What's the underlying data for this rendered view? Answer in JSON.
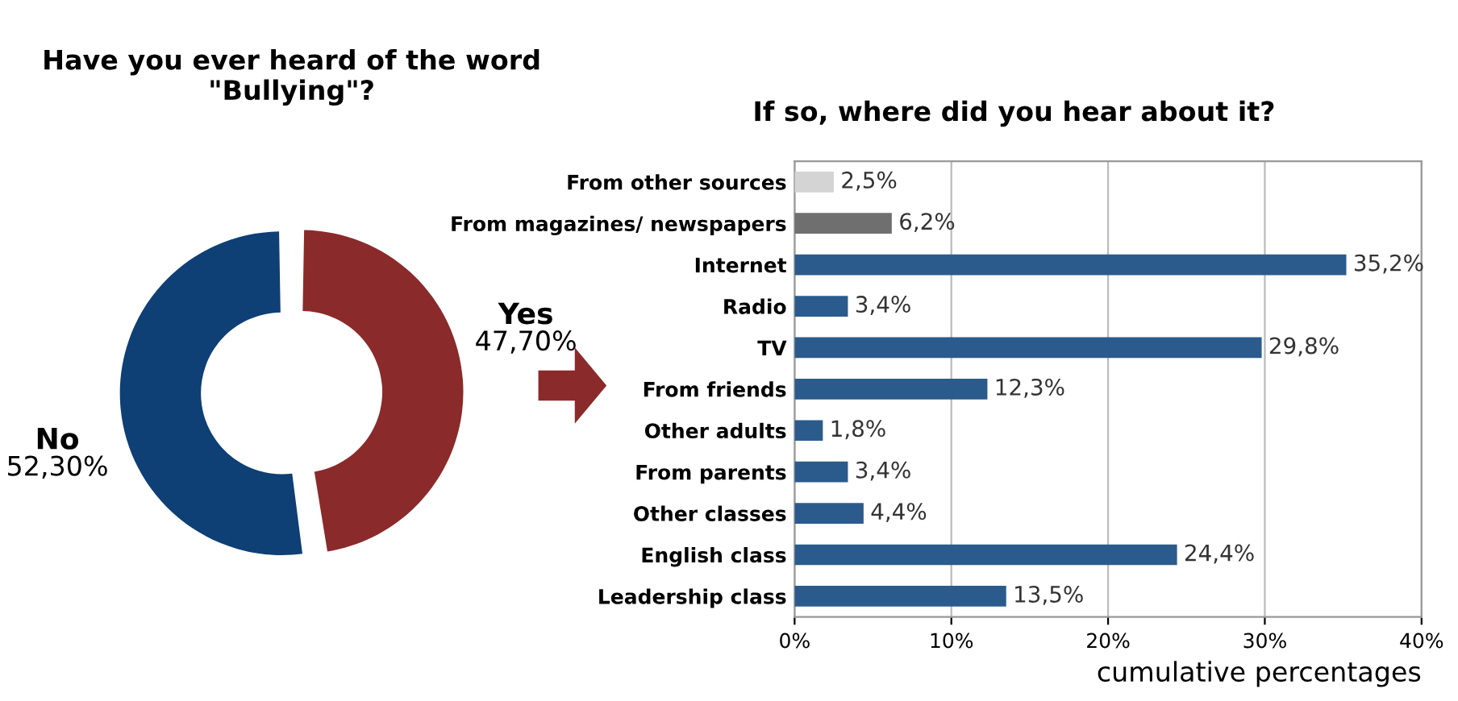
{
  "chart_data": [
    {
      "type": "donut",
      "title": "Have you ever heard of the word \"Bullying\"?",
      "categories": [
        "Yes",
        "No"
      ],
      "values": [
        47.7,
        52.3
      ],
      "colors": [
        "#8b2a2a",
        "#0e3f75"
      ],
      "value_labels": [
        "47,70%",
        "52,30%"
      ]
    },
    {
      "type": "bar",
      "orientation": "horizontal",
      "title": "If so, where did you hear about it?",
      "xlabel": "cumulative percentages",
      "categories": [
        "From other sources",
        "From magazines/ newspapers",
        "Internet",
        "Radio",
        "TV",
        "From friends",
        "Other adults",
        "From parents",
        "Other classes",
        "English class",
        "Leadership class"
      ],
      "values": [
        2.5,
        6.2,
        35.2,
        3.4,
        29.8,
        12.3,
        1.8,
        3.4,
        4.4,
        24.4,
        13.5
      ],
      "colors": [
        "#d4d4d4",
        "#6f6f6f",
        "#2b5b8c",
        "#2b5b8c",
        "#2b5b8c",
        "#2b5b8c",
        "#2b5b8c",
        "#2b5b8c",
        "#2b5b8c",
        "#2b5b8c",
        "#2b5b8c"
      ],
      "value_labels": [
        "2,5%",
        "6,2%",
        "35,2%",
        "3,4%",
        "29,8%",
        "12,3%",
        "1,8%",
        "3,4%",
        "4,4%",
        "24,4%",
        "13,5%"
      ],
      "xlim": [
        0,
        40
      ],
      "xticks": [
        {
          "value": 0,
          "label": "0%"
        },
        {
          "value": 10,
          "label": "10%"
        },
        {
          "value": 20,
          "label": "20%"
        },
        {
          "value": 30,
          "label": "30%"
        },
        {
          "value": 40,
          "label": "40%"
        }
      ],
      "grid": "x",
      "legend": false
    }
  ]
}
